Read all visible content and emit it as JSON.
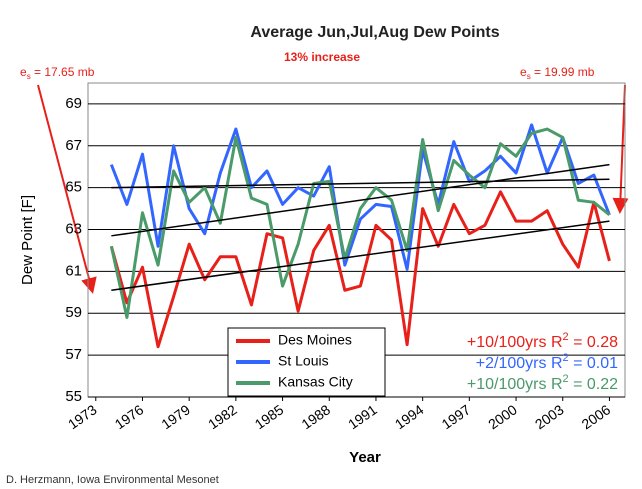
{
  "chart_data": {
    "type": "line",
    "title": "Average Jun,Jul,Aug Dew Points",
    "subtitle": "13% increase",
    "x_label": "Year",
    "y_label": "Dew Point [F]",
    "credit": "D. Herzmann, Iowa Environmental Mesonet",
    "annotations": [
      {
        "base": "e",
        "sub": "s",
        "rest": " = 17.65 mb"
      },
      {
        "base": "e",
        "sub": "s",
        "rest": " = 19.99 mb"
      }
    ],
    "x": [
      1974,
      1975,
      1976,
      1977,
      1978,
      1979,
      1980,
      1981,
      1982,
      1983,
      1984,
      1985,
      1986,
      1987,
      1988,
      1989,
      1990,
      1991,
      1992,
      1993,
      1994,
      1995,
      1996,
      1997,
      1998,
      1999,
      2000,
      2001,
      2002,
      2003,
      2004,
      2005,
      2006
    ],
    "xlim": [
      1972.5,
      2007
    ],
    "xticks": [
      1973,
      1976,
      1979,
      1982,
      1985,
      1988,
      1991,
      1994,
      1997,
      2000,
      2003,
      2006
    ],
    "ylim": [
      55,
      70
    ],
    "yticks": [
      55,
      57,
      59,
      61,
      63,
      65,
      67,
      69
    ],
    "grid": true,
    "series": [
      {
        "name": "Des Moines",
        "color": "#e8201a",
        "values": [
          62.2,
          59.5,
          61.2,
          57.4,
          59.8,
          62.3,
          60.6,
          61.7,
          61.7,
          59.4,
          62.8,
          62.6,
          59.1,
          62.0,
          63.2,
          60.1,
          60.3,
          63.2,
          62.5,
          57.5,
          64.0,
          62.2,
          64.2,
          62.8,
          63.2,
          64.8,
          63.4,
          63.4,
          63.9,
          62.3,
          61.2,
          64.3,
          61.5
        ],
        "trend": [
          60.1,
          63.4
        ],
        "trend_text": {
          "pre": "+10/100yrs R",
          "sup": "2",
          "post": " = 0.28"
        }
      },
      {
        "name": "St Louis",
        "color": "#3366ff",
        "values": [
          66.1,
          64.2,
          66.6,
          62.2,
          67.0,
          64.0,
          62.8,
          65.7,
          67.8,
          65.0,
          65.8,
          64.2,
          65.0,
          64.6,
          66.0,
          61.3,
          63.5,
          64.2,
          64.1,
          61.1,
          66.8,
          64.2,
          67.2,
          65.3,
          65.8,
          66.5,
          65.7,
          68.0,
          65.7,
          67.4,
          65.2,
          65.6,
          63.7
        ],
        "trend": [
          65.0,
          65.4
        ],
        "trend_text": {
          "pre": "+2/100yrs R",
          "sup": "2",
          "post": " = 0.01"
        }
      },
      {
        "name": "Kansas City",
        "color": "#4a9a6a",
        "values": [
          62.2,
          58.8,
          63.8,
          61.3,
          65.8,
          64.3,
          65.0,
          63.3,
          67.4,
          64.5,
          64.2,
          60.3,
          62.3,
          65.2,
          65.3,
          61.6,
          64.0,
          65.0,
          64.4,
          62.0,
          67.3,
          63.9,
          66.3,
          65.6,
          65.0,
          67.1,
          66.5,
          67.6,
          67.8,
          67.4,
          64.4,
          64.3,
          63.7
        ],
        "trend": [
          62.7,
          66.1
        ],
        "trend_text": {
          "pre": "+10/100yrs R",
          "sup": "2",
          "post": " = 0.22"
        }
      }
    ]
  }
}
